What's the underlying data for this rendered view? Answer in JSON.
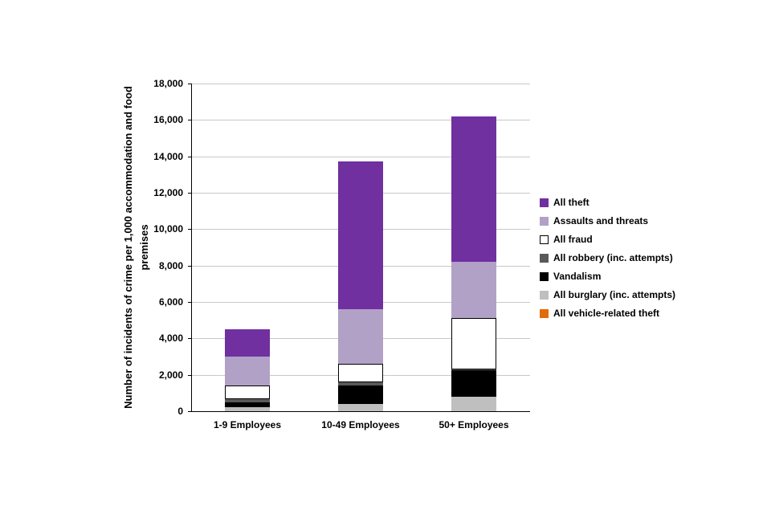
{
  "chart_data": {
    "type": "bar",
    "stacked": true,
    "title": "",
    "ylabel": "Number of incidents of crime per 1,000 accommodation and food premises",
    "categories": [
      "1-9 Employees",
      "10-49 Employees",
      "50+ Employees"
    ],
    "series": [
      {
        "name": "All vehicle-related theft",
        "color": "#E36C09",
        "values": [
          0,
          0,
          0
        ]
      },
      {
        "name": "All burglary (inc. attempts)",
        "color": "#BFBFBF",
        "values": [
          200,
          400,
          800
        ]
      },
      {
        "name": "Vandalism",
        "color": "#000000",
        "values": [
          300,
          1000,
          1450
        ]
      },
      {
        "name": "All robbery (inc. attempts)",
        "color": "#595959",
        "values": [
          150,
          200,
          50
        ]
      },
      {
        "name": "All fraud",
        "color": "#FFFFFF",
        "values": [
          750,
          1000,
          2800
        ]
      },
      {
        "name": "Assaults and threats",
        "color": "#B2A1C7",
        "values": [
          1600,
          3000,
          3100
        ]
      },
      {
        "name": "All theft",
        "color": "#7030A0",
        "values": [
          1500,
          8100,
          8000
        ]
      }
    ],
    "legend": [
      "All theft",
      "Assaults and threats",
      "All fraud",
      "All robbery (inc. attempts)",
      "Vandalism",
      "All burglary (inc. attempts)",
      "All vehicle-related theft"
    ],
    "ylim": [
      0,
      18000
    ],
    "ytick_step": 2000,
    "grid": true,
    "legend_position": "right"
  }
}
